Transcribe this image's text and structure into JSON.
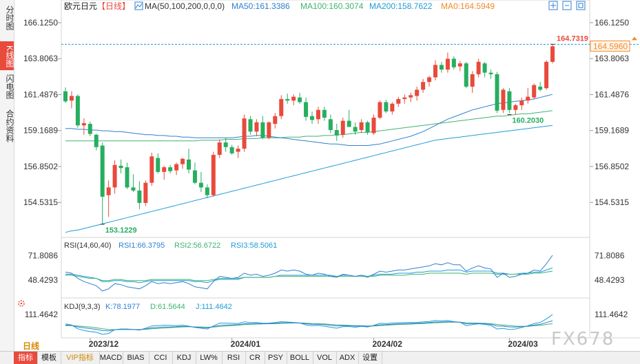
{
  "sidebar": {
    "items": [
      {
        "label": "分时图",
        "active": false
      },
      {
        "label": "K线图",
        "active": true
      },
      {
        "label": "闪电图",
        "active": false
      },
      {
        "label": "合约资料",
        "active": false
      }
    ]
  },
  "period_label": "日线",
  "watermark": "FX678",
  "colors": {
    "up": "#e84a3c",
    "down": "#27ae60",
    "ma50": "#2f7fd0",
    "ma100": "#3cb371",
    "ma200": "#1e9bd7",
    "cursor": "#1e9bd7",
    "last": "#f08a2a"
  },
  "toolbar": {
    "items": [
      {
        "label": "指标",
        "style": "active"
      },
      {
        "label": "模板",
        "style": ""
      },
      {
        "label": "VIP指标",
        "style": "vip"
      },
      {
        "label": "MACD",
        "style": ""
      },
      {
        "label": "BIAS",
        "style": ""
      },
      {
        "label": "CCI",
        "style": ""
      },
      {
        "label": "KDJ",
        "style": ""
      },
      {
        "label": "LW%",
        "style": ""
      },
      {
        "label": "RSI",
        "style": ""
      },
      {
        "label": "CR",
        "style": ""
      },
      {
        "label": "PSY",
        "style": ""
      },
      {
        "label": "BOLL",
        "style": ""
      },
      {
        "label": "VOL",
        "style": ""
      },
      {
        "label": "ADX",
        "style": ""
      },
      {
        "label": "设置",
        "style": ""
      }
    ]
  },
  "chart_data": {
    "type": "candlestick",
    "title": "欧元日元",
    "period": "日线",
    "ma_label": "MA(50,100,200,0,0,0)",
    "ma_values": [
      {
        "label": "MA50:161.3386",
        "color": "#2f7fd0"
      },
      {
        "label": "MA100:160.3074",
        "color": "#3cb371"
      },
      {
        "label": "MA200:158.7622",
        "color": "#1e9bd7"
      },
      {
        "label": "MA0:164.5949",
        "color": "#f08a2a"
      }
    ],
    "y_ticks": [
      "166.1250",
      "163.8063",
      "161.4876",
      "159.1689",
      "156.8502",
      "154.5315"
    ],
    "y_tick_values": [
      166.125,
      163.8063,
      161.4876,
      159.1689,
      156.8502,
      154.5315
    ],
    "ylim": [
      152.5,
      166.7
    ],
    "x_labels": [
      {
        "label": "2023/12",
        "index": 4
      },
      {
        "label": "2024/01",
        "index": 27
      },
      {
        "label": "2024/02",
        "index": 50
      },
      {
        "label": "2024/03",
        "index": 72
      }
    ],
    "max_label": "164.7319",
    "min_label": "153.1229",
    "low_label2": "160.2030",
    "last_price": "164.5960",
    "last_price_value": 164.596,
    "cursor_price_value": 164.7319,
    "max_value": 164.7319,
    "min_value": 153.1229,
    "low2_value": 160.203,
    "ohlc": [
      [
        161.7,
        161.95,
        160.95,
        161.05
      ],
      [
        161.1,
        161.7,
        160.6,
        161.4
      ],
      [
        161.4,
        161.5,
        159.35,
        159.5
      ],
      [
        159.5,
        159.95,
        158.9,
        159.65
      ],
      [
        159.6,
        159.75,
        158.8,
        158.95
      ],
      [
        158.9,
        158.95,
        157.9,
        158.1
      ],
      [
        158.2,
        158.4,
        153.12,
        154.9
      ],
      [
        155.0,
        155.95,
        153.6,
        155.5
      ],
      [
        155.5,
        157.25,
        155.1,
        156.95
      ],
      [
        156.9,
        157.3,
        156.4,
        156.75
      ],
      [
        156.8,
        157.1,
        155.4,
        155.5
      ],
      [
        155.5,
        156.35,
        155.2,
        155.3
      ],
      [
        155.3,
        155.9,
        154.1,
        154.5
      ],
      [
        154.5,
        155.95,
        154.3,
        155.8
      ],
      [
        155.8,
        157.75,
        155.6,
        157.5
      ],
      [
        157.4,
        157.7,
        156.4,
        156.5
      ],
      [
        156.5,
        156.9,
        156.0,
        156.8
      ],
      [
        156.8,
        156.95,
        156.4,
        156.55
      ],
      [
        156.6,
        157.1,
        156.3,
        157.0
      ],
      [
        157.0,
        157.4,
        156.7,
        157.35
      ],
      [
        157.3,
        158.0,
        156.4,
        156.65
      ],
      [
        156.6,
        157.1,
        155.7,
        155.8
      ],
      [
        155.8,
        156.5,
        155.2,
        155.5
      ],
      [
        155.5,
        155.7,
        154.8,
        155.0
      ],
      [
        155.0,
        157.8,
        154.9,
        157.6
      ],
      [
        157.6,
        158.6,
        157.4,
        158.4
      ],
      [
        158.4,
        158.7,
        157.8,
        158.1
      ],
      [
        158.1,
        158.25,
        157.6,
        157.7
      ],
      [
        157.8,
        158.2,
        157.4,
        158.0
      ],
      [
        158.0,
        160.2,
        157.8,
        159.95
      ],
      [
        159.9,
        160.1,
        158.9,
        159.1
      ],
      [
        159.1,
        159.9,
        158.8,
        159.7
      ],
      [
        159.7,
        160.1,
        158.6,
        158.7
      ],
      [
        158.7,
        159.75,
        158.6,
        159.7
      ],
      [
        159.6,
        160.3,
        159.3,
        160.1
      ],
      [
        160.1,
        161.45,
        159.9,
        161.2
      ],
      [
        161.2,
        161.55,
        160.9,
        161.1
      ],
      [
        161.1,
        161.5,
        160.8,
        161.35
      ],
      [
        161.3,
        161.6,
        160.9,
        161.0
      ],
      [
        161.0,
        161.3,
        159.8,
        160.05
      ],
      [
        160.1,
        160.4,
        159.6,
        159.85
      ],
      [
        159.9,
        160.7,
        159.6,
        160.5
      ],
      [
        160.5,
        160.7,
        159.8,
        160.0
      ],
      [
        159.9,
        160.2,
        159.0,
        159.2
      ],
      [
        159.2,
        159.6,
        158.5,
        158.85
      ],
      [
        158.9,
        160.0,
        158.7,
        159.8
      ],
      [
        159.8,
        160.5,
        159.4,
        159.4
      ],
      [
        159.4,
        159.7,
        158.9,
        159.1
      ],
      [
        159.2,
        159.9,
        159.0,
        159.7
      ],
      [
        159.7,
        159.8,
        158.9,
        159.05
      ],
      [
        159.0,
        160.2,
        158.9,
        160.0
      ],
      [
        160.0,
        161.1,
        159.9,
        161.0
      ],
      [
        161.0,
        161.15,
        160.3,
        160.4
      ],
      [
        160.4,
        161.0,
        160.2,
        160.9
      ],
      [
        160.9,
        161.35,
        160.7,
        161.2
      ],
      [
        161.2,
        161.5,
        160.9,
        161.3
      ],
      [
        161.3,
        161.6,
        161.0,
        161.45
      ],
      [
        161.4,
        162.0,
        161.1,
        161.8
      ],
      [
        161.8,
        162.5,
        161.6,
        162.3
      ],
      [
        162.3,
        162.7,
        162.0,
        162.6
      ],
      [
        162.6,
        163.7,
        162.4,
        163.4
      ],
      [
        163.4,
        163.6,
        162.9,
        163.1
      ],
      [
        163.1,
        164.2,
        162.9,
        163.8
      ],
      [
        163.8,
        163.95,
        163.1,
        163.25
      ],
      [
        163.3,
        163.65,
        163.0,
        163.5
      ],
      [
        163.5,
        163.6,
        161.9,
        162.0
      ],
      [
        162.0,
        163.0,
        161.6,
        162.8
      ],
      [
        162.8,
        163.8,
        162.6,
        163.6
      ],
      [
        163.5,
        163.6,
        162.6,
        162.9
      ],
      [
        162.9,
        163.1,
        162.5,
        162.8
      ],
      [
        162.8,
        162.95,
        160.3,
        160.45
      ],
      [
        160.5,
        161.9,
        160.3,
        161.8
      ],
      [
        161.7,
        161.9,
        160.3,
        160.5
      ],
      [
        160.5,
        160.9,
        160.2,
        160.8
      ],
      [
        160.8,
        161.3,
        160.5,
        161.1
      ],
      [
        161.1,
        161.9,
        160.9,
        161.35
      ],
      [
        161.3,
        162.2,
        161.2,
        162.1
      ],
      [
        162.0,
        162.3,
        161.7,
        161.8
      ],
      [
        161.9,
        163.7,
        161.8,
        163.6
      ],
      [
        163.6,
        164.73,
        163.5,
        164.6
      ]
    ],
    "ma50": [
      159.3,
      159.3,
      159.25,
      159.25,
      159.2,
      159.2,
      159.15,
      159.15,
      159.1,
      159.1,
      159.05,
      159.0,
      158.95,
      158.9,
      158.9,
      158.85,
      158.85,
      158.8,
      158.8,
      158.75,
      158.75,
      158.7,
      158.7,
      158.7,
      158.7,
      158.7,
      158.7,
      158.7,
      158.75,
      158.8,
      158.8,
      158.85,
      158.85,
      158.8,
      158.75,
      158.7,
      158.65,
      158.6,
      158.55,
      158.5,
      158.45,
      158.4,
      158.35,
      158.3,
      158.3,
      158.25,
      158.2,
      158.2,
      158.2,
      158.2,
      158.25,
      158.3,
      158.4,
      158.5,
      158.6,
      158.7,
      158.8,
      158.95,
      159.1,
      159.3,
      159.5,
      159.7,
      159.9,
      160.05,
      160.2,
      160.35,
      160.5,
      160.6,
      160.7,
      160.8,
      160.9,
      160.95,
      161.0,
      161.05,
      161.1,
      161.15,
      161.2,
      161.3,
      161.4,
      161.5
    ],
    "ma100": [
      158.5,
      158.5,
      158.5,
      158.5,
      158.5,
      158.5,
      158.5,
      158.5,
      158.5,
      158.5,
      158.5,
      158.5,
      158.5,
      158.5,
      158.5,
      158.5,
      158.5,
      158.5,
      158.5,
      158.5,
      158.5,
      158.5,
      158.55,
      158.55,
      158.55,
      158.55,
      158.6,
      158.6,
      158.6,
      158.65,
      158.65,
      158.65,
      158.7,
      158.7,
      158.7,
      158.7,
      158.75,
      158.75,
      158.75,
      158.8,
      158.8,
      158.8,
      158.85,
      158.85,
      158.9,
      158.9,
      158.95,
      159.0,
      159.05,
      159.05,
      159.1,
      159.15,
      159.2,
      159.25,
      159.3,
      159.35,
      159.4,
      159.45,
      159.5,
      159.55,
      159.6,
      159.65,
      159.7,
      159.75,
      159.8,
      159.85,
      159.9,
      159.95,
      160.0,
      160.05,
      160.1,
      160.1,
      160.15,
      160.2,
      160.25,
      160.25,
      160.3,
      160.35,
      160.4,
      160.45
    ],
    "ma200": [
      152.6,
      152.7,
      152.75,
      152.85,
      152.95,
      153.05,
      153.15,
      153.25,
      153.35,
      153.45,
      153.55,
      153.65,
      153.75,
      153.85,
      153.95,
      154.05,
      154.15,
      154.25,
      154.35,
      154.45,
      154.55,
      154.65,
      154.75,
      154.85,
      154.95,
      155.05,
      155.15,
      155.25,
      155.35,
      155.45,
      155.55,
      155.65,
      155.75,
      155.85,
      155.95,
      156.05,
      156.15,
      156.25,
      156.35,
      156.45,
      156.55,
      156.65,
      156.75,
      156.85,
      156.95,
      157.05,
      157.15,
      157.25,
      157.35,
      157.45,
      157.55,
      157.65,
      157.75,
      157.85,
      157.95,
      158.05,
      158.15,
      158.25,
      158.35,
      158.45,
      158.55,
      158.6,
      158.65,
      158.7,
      158.75,
      158.8,
      158.85,
      158.9,
      158.95,
      159.0,
      159.05,
      159.1,
      159.15,
      159.2,
      159.25,
      159.3,
      159.35,
      159.4,
      159.45,
      159.5
    ],
    "rsi": {
      "label": "RSI(14,60,40)",
      "values": [
        {
          "label": "RSI1:66.3795",
          "color": "#2f7fd0"
        },
        {
          "label": "RSI2:56.6722",
          "color": "#3cb371"
        },
        {
          "label": "RSI3:58.5061",
          "color": "#1e9bd7"
        }
      ],
      "y_ticks": [
        "71.8086",
        "48.4293"
      ],
      "y_tick_values": [
        71.8086,
        48.4293
      ],
      "ylim": [
        32,
        78
      ],
      "rsi1": [
        56,
        55,
        50,
        47,
        45,
        43,
        38,
        40,
        45,
        44,
        42,
        41,
        40,
        43,
        47,
        45,
        46,
        45,
        46,
        47,
        45,
        42,
        41,
        40,
        47,
        52,
        51,
        50,
        51,
        55,
        53,
        54,
        52,
        53,
        55,
        58,
        57,
        58,
        57,
        54,
        53,
        55,
        54,
        52,
        51,
        54,
        53,
        52,
        53,
        51,
        54,
        57,
        56,
        57,
        58,
        58,
        59,
        60,
        61,
        62,
        64,
        63,
        65,
        63,
        63,
        57,
        60,
        62,
        60,
        59,
        51,
        55,
        51,
        52,
        54,
        55,
        58,
        57,
        64,
        72
      ],
      "rsi2": [
        53,
        53,
        52,
        51,
        50,
        50,
        48,
        48,
        49,
        49,
        48,
        48,
        48,
        48,
        49,
        49,
        49,
        49,
        49,
        49,
        49,
        48,
        48,
        48,
        49,
        50,
        50,
        50,
        50,
        51,
        51,
        51,
        51,
        51,
        52,
        52,
        52,
        52,
        52,
        52,
        52,
        52,
        52,
        52,
        52,
        52,
        52,
        52,
        52,
        52,
        52,
        53,
        53,
        53,
        53,
        53,
        54,
        54,
        54,
        55,
        55,
        55,
        55,
        55,
        55,
        54,
        55,
        55,
        55,
        55,
        54,
        54,
        54,
        54,
        54,
        54,
        55,
        55,
        56,
        57
      ],
      "rsi3": [
        54,
        54,
        53,
        52,
        51,
        50,
        47,
        47,
        48,
        48,
        47,
        47,
        46,
        47,
        48,
        48,
        48,
        48,
        48,
        48,
        48,
        47,
        47,
        46,
        48,
        49,
        49,
        49,
        49,
        51,
        51,
        51,
        51,
        51,
        52,
        53,
        53,
        53,
        53,
        53,
        53,
        53,
        53,
        53,
        52,
        53,
        53,
        52,
        53,
        52,
        53,
        54,
        54,
        54,
        55,
        55,
        55,
        56,
        56,
        57,
        57,
        57,
        58,
        58,
        58,
        56,
        57,
        57,
        57,
        57,
        55,
        55,
        54,
        54,
        55,
        55,
        56,
        56,
        58,
        60
      ]
    },
    "kdj": {
      "label": "KDJ(9,3,3)",
      "values": [
        {
          "label": "K:78.1977",
          "color": "#2f7fd0"
        },
        {
          "label": "D:61.5644",
          "color": "#3cb371"
        },
        {
          "label": "J:111.4642",
          "color": "#1e9bd7"
        }
      ],
      "y_ticks": [
        "111.4642"
      ],
      "y_tick_values": [
        111.4642
      ],
      "ylim": [
        -10,
        130
      ],
      "k": [
        55,
        53,
        45,
        40,
        36,
        32,
        25,
        24,
        30,
        32,
        32,
        31,
        30,
        34,
        40,
        42,
        44,
        45,
        46,
        48,
        47,
        44,
        42,
        40,
        46,
        53,
        55,
        56,
        57,
        62,
        62,
        63,
        62,
        63,
        64,
        67,
        67,
        67,
        66,
        62,
        59,
        59,
        57,
        53,
        50,
        52,
        51,
        49,
        50,
        48,
        51,
        56,
        57,
        59,
        61,
        62,
        63,
        64,
        66,
        68,
        71,
        71,
        73,
        71,
        70,
        62,
        63,
        64,
        62,
        59,
        50,
        49,
        45,
        44,
        46,
        49,
        55,
        58,
        68,
        78
      ],
      "d": [
        52,
        52,
        50,
        47,
        44,
        40,
        35,
        31,
        30,
        31,
        31,
        31,
        31,
        32,
        35,
        37,
        39,
        41,
        43,
        45,
        46,
        45,
        44,
        43,
        44,
        47,
        50,
        52,
        54,
        57,
        59,
        60,
        61,
        62,
        62,
        64,
        65,
        66,
        66,
        65,
        63,
        62,
        61,
        58,
        56,
        55,
        53,
        52,
        51,
        50,
        50,
        52,
        54,
        56,
        58,
        59,
        60,
        62,
        63,
        65,
        67,
        68,
        70,
        70,
        70,
        67,
        66,
        65,
        64,
        62,
        58,
        55,
        52,
        49,
        48,
        48,
        51,
        53,
        58,
        62
      ],
      "j": [
        61,
        55,
        35,
        26,
        20,
        16,
        5,
        10,
        30,
        34,
        34,
        31,
        28,
        38,
        50,
        52,
        54,
        53,
        52,
        54,
        49,
        42,
        38,
        34,
        50,
        65,
        65,
        64,
        63,
        72,
        68,
        69,
        64,
        65,
        68,
        73,
        71,
        69,
        66,
        56,
        51,
        53,
        49,
        43,
        38,
        46,
        47,
        43,
        48,
        44,
        53,
        64,
        63,
        65,
        67,
        68,
        69,
        68,
        72,
        74,
        79,
        77,
        79,
        73,
        70,
        52,
        57,
        62,
        58,
        53,
        34,
        37,
        31,
        34,
        42,
        51,
        63,
        68,
        88,
        111
      ]
    }
  }
}
